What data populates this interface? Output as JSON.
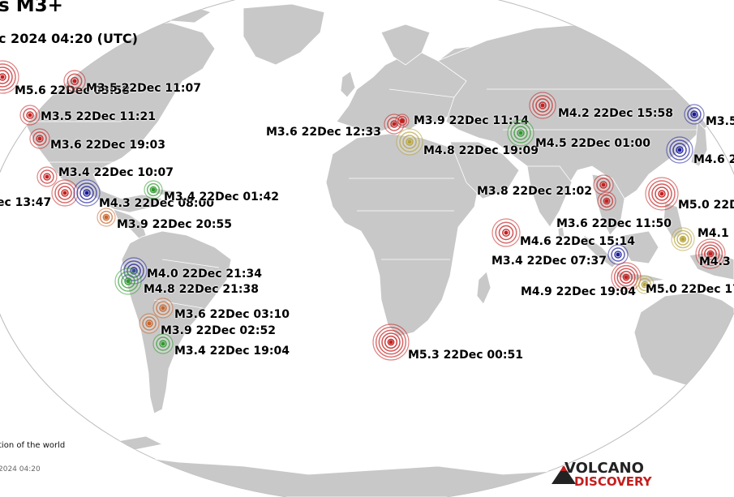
{
  "map": {
    "title": "s M3+",
    "subtitle": "c 2024 04:20 (UTC)",
    "footnote": "tion of the world",
    "stamp": "2024 04:20",
    "logo": {
      "line1": "VOLCANO",
      "line2": "DISCOVERY"
    },
    "colors": {
      "ocean": "#ffffff",
      "land": "#c8c8c8",
      "border": "#ffffff",
      "red": "#c42020",
      "orange": "#c8642a",
      "green": "#2e9a2e",
      "blue": "#1a1a9a",
      "yellow": "#b5a23a"
    }
  },
  "quakes": [
    {
      "id": "q1",
      "label": "M5.6 22Dec 03:58",
      "color": "red"
    },
    {
      "id": "q2",
      "label": "M3.5 22Dec 11:07",
      "color": "red"
    },
    {
      "id": "q3",
      "label": "M3.5 22Dec 11:21",
      "color": "red"
    },
    {
      "id": "q4",
      "label": "M3.6 22Dec 19:03",
      "color": "red"
    },
    {
      "id": "q5",
      "label": "M3.4 22Dec 10:07",
      "color": "red"
    },
    {
      "id": "q6",
      "label": "ec 13:47",
      "color": "red"
    },
    {
      "id": "q7",
      "label": "M4.3 22Dec 08:00",
      "color": "blue"
    },
    {
      "id": "q8",
      "label": "M3.4 22Dec 01:42",
      "color": "green"
    },
    {
      "id": "q9",
      "label": "M3.9 22Dec 20:55",
      "color": "orange"
    },
    {
      "id": "q10",
      "label": "M4.0 22Dec 21:34",
      "color": "blue"
    },
    {
      "id": "q11",
      "label": "M4.8 22Dec 21:38",
      "color": "green"
    },
    {
      "id": "q12",
      "label": "M3.6 22Dec 03:10",
      "color": "orange"
    },
    {
      "id": "q13",
      "label": "M3.9 22Dec 02:52",
      "color": "orange"
    },
    {
      "id": "q14",
      "label": "M3.4 22Dec 19:04",
      "color": "green"
    },
    {
      "id": "q15",
      "label": "M5.3 22Dec 00:51",
      "color": "red"
    },
    {
      "id": "q16",
      "label": "M3.6 22Dec 12:33",
      "color": "red"
    },
    {
      "id": "q17",
      "label": "M3.9 22Dec 11:14",
      "color": "red"
    },
    {
      "id": "q18",
      "label": "M4.8 22Dec 19:09",
      "color": "yellow"
    },
    {
      "id": "q19",
      "label": "M4.2 22Dec 15:58",
      "color": "red"
    },
    {
      "id": "q20",
      "label": "M4.5 22Dec 01:00",
      "color": "green"
    },
    {
      "id": "q21",
      "label": "M3.8 22Dec 21:02",
      "color": "red"
    },
    {
      "id": "q22",
      "label": "M3.6 22Dec 11:50",
      "color": "red"
    },
    {
      "id": "q23",
      "label": "M4.6 22Dec 15:14",
      "color": "red"
    },
    {
      "id": "q24",
      "label": "M3.4 22Dec 07:37",
      "color": "blue"
    },
    {
      "id": "q25",
      "label": "M4.9 22Dec 19:04",
      "color": "red"
    },
    {
      "id": "q26",
      "label": "M5.0 22Dec 17",
      "color": "yellow"
    },
    {
      "id": "q27",
      "label": "M3.5",
      "color": "blue"
    },
    {
      "id": "q28",
      "label": "M4.6 2",
      "color": "blue"
    },
    {
      "id": "q29",
      "label": "M5.0 22D",
      "color": "red"
    },
    {
      "id": "q30",
      "label": "M4.1",
      "color": "yellow"
    },
    {
      "id": "q31",
      "label": "M4.3",
      "color": "red"
    }
  ]
}
